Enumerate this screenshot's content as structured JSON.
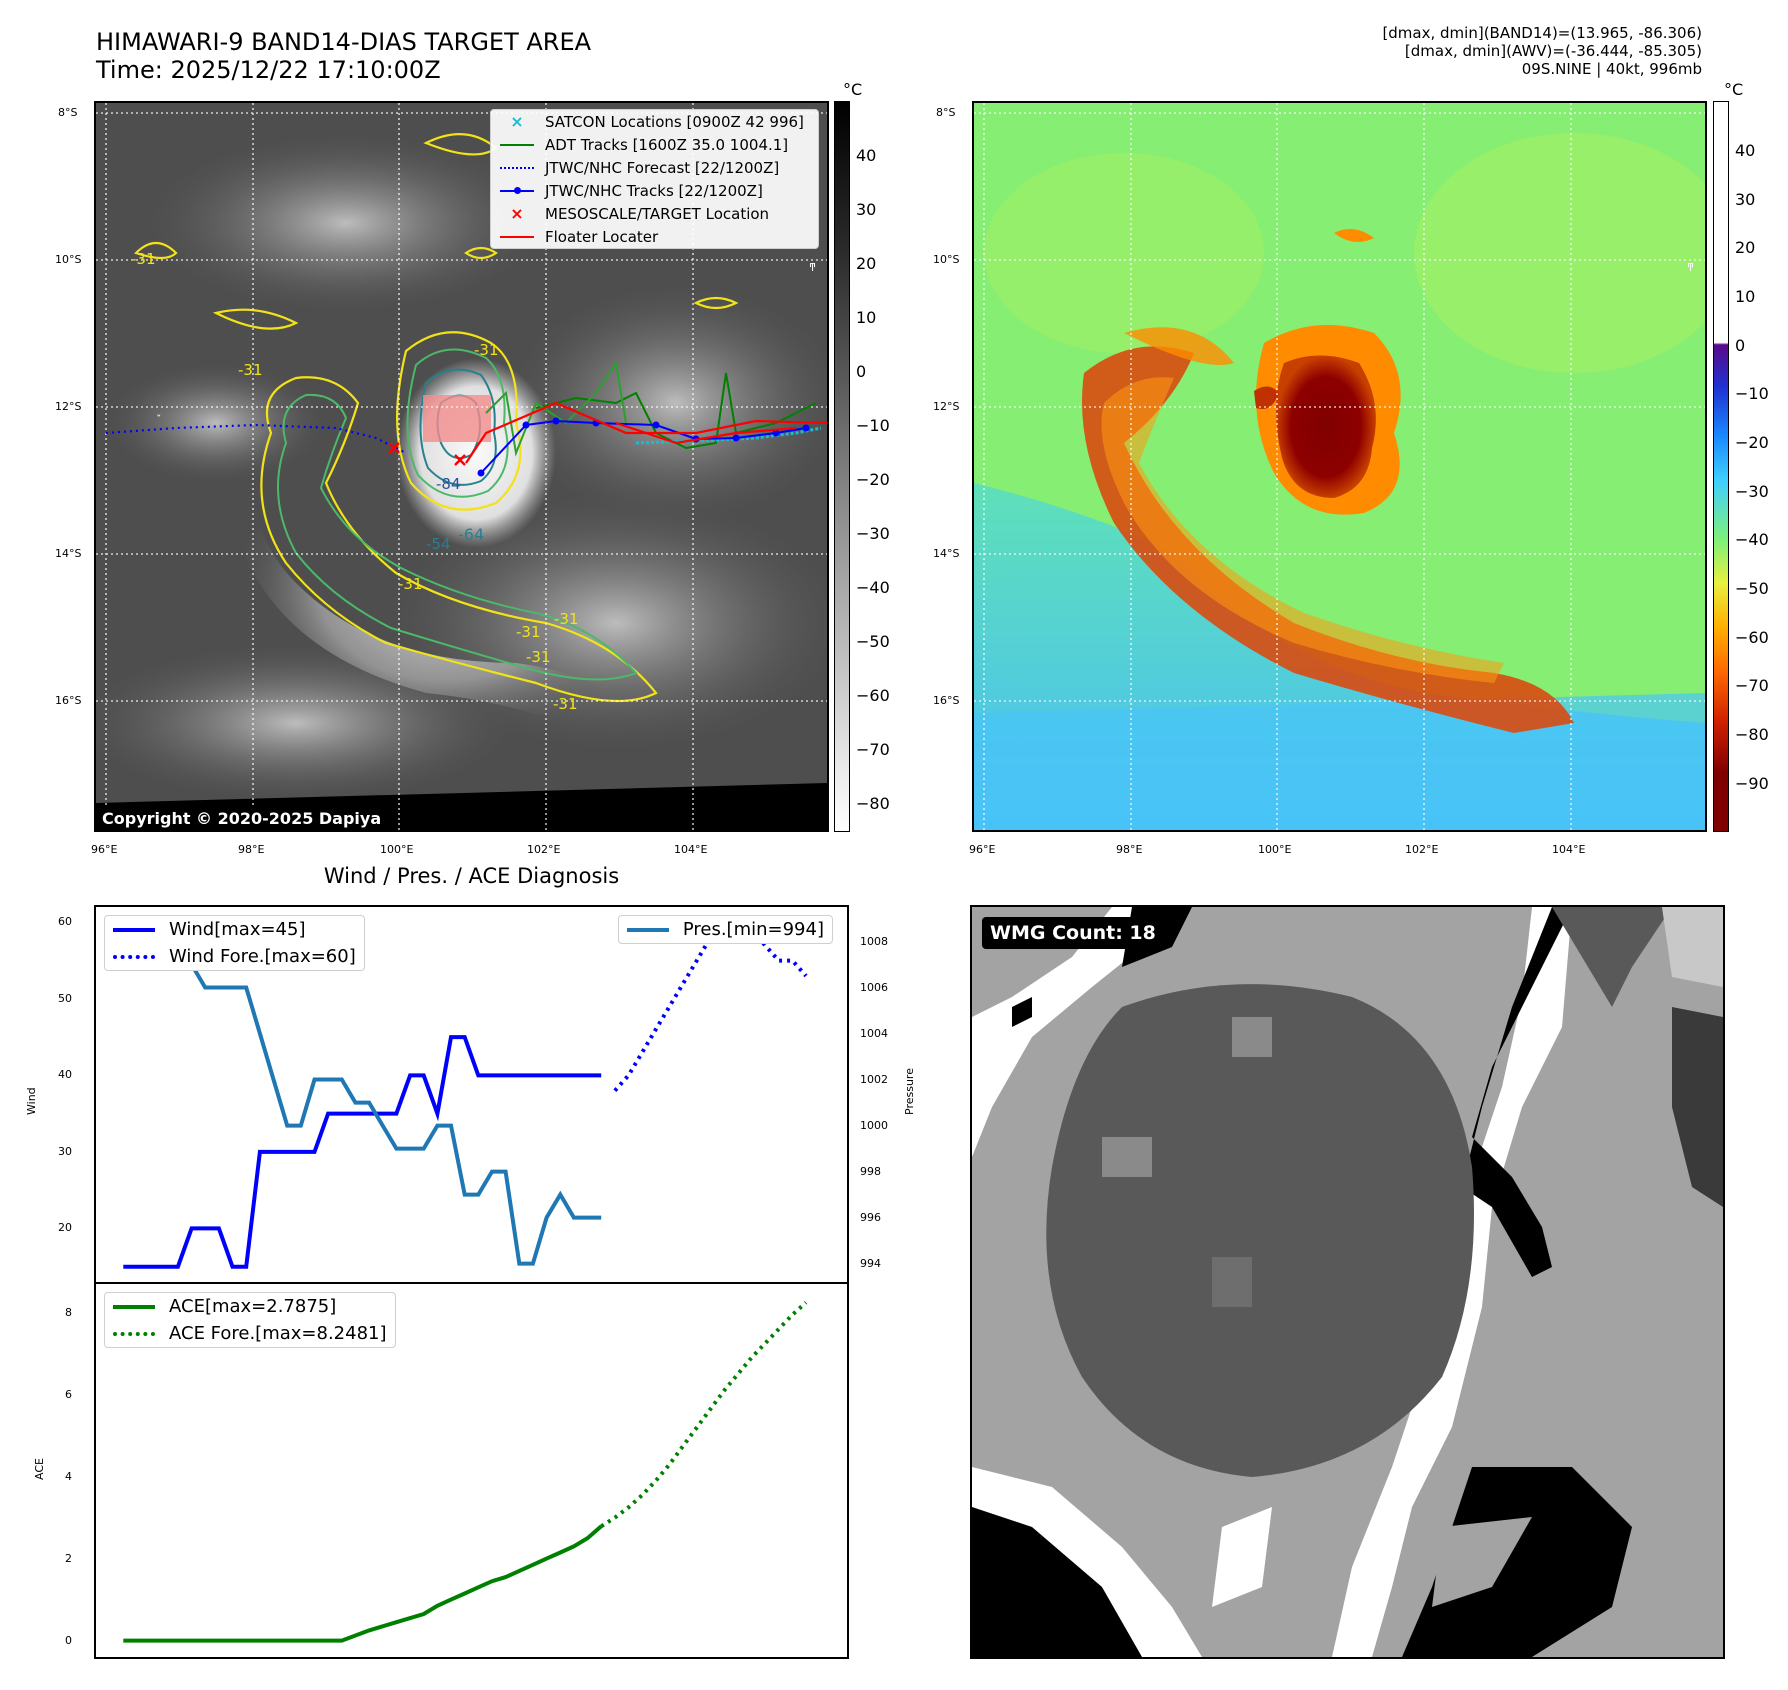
{
  "header": {
    "title_line1": "HIMAWARI-9 BAND14-DIAS TARGET AREA",
    "title_line2": "Time: 2025/12/22 17:10:00Z",
    "info_line1": "[dmax, dmin](BAND14)=(13.965, -86.306)",
    "info_line2": "[dmax, dmin](AWV)=(-36.444, -85.305)",
    "info_line3": "09S.NINE | 40kt, 996mb"
  },
  "map_axes": {
    "lat_labels": [
      "8°S",
      "10°S",
      "12°S",
      "14°S",
      "16°S"
    ],
    "lon_labels": [
      "96°E",
      "98°E",
      "100°E",
      "102°E",
      "104°E"
    ]
  },
  "left_map": {
    "copyright": "Copyright © 2020-2025 Dapiya",
    "contour_labels": [
      "-31",
      "-31",
      "-31",
      "-31",
      "-31",
      "-31",
      "-64",
      "-84",
      "-54",
      "-31",
      "-31"
    ],
    "legend": [
      {
        "label": "SATCON Locations [0900Z 42 996]",
        "symbol": "x-marker",
        "color": "#17becf"
      },
      {
        "label": "ADT Tracks [1600Z 35.0 1004.1]",
        "symbol": "solid-line",
        "color": "#008000"
      },
      {
        "label": "JTWC/NHC Forecast [22/1200Z]",
        "symbol": "dotted-line",
        "color": "#0000ff"
      },
      {
        "label": "JTWC/NHC Tracks [22/1200Z]",
        "symbol": "dot-line",
        "color": "#0000ff"
      },
      {
        "label": "MESOSCALE/TARGET Location",
        "symbol": "x-marker",
        "color": "#ff0000"
      },
      {
        "label": "Floater Locater",
        "symbol": "solid-line",
        "color": "#ff0000"
      }
    ]
  },
  "left_colorbar": {
    "unit": "°C",
    "ticks": [
      "40",
      "30",
      "20",
      "10",
      "0",
      "−10",
      "−20",
      "−30",
      "−40",
      "−50",
      "−60",
      "−70",
      "−80"
    ]
  },
  "right_colorbar": {
    "unit": "°C",
    "ticks": [
      "40",
      "30",
      "20",
      "10",
      "0",
      "−10",
      "−20",
      "−30",
      "−40",
      "−50",
      "−60",
      "−70",
      "−80",
      "−90"
    ]
  },
  "diag_title": "Wind / Pres. / ACE Diagnosis",
  "wmg": {
    "label": "WMG Count: 18"
  },
  "chart_data": [
    {
      "type": "line",
      "ylabel": "Wind",
      "ylim": [
        13,
        62
      ],
      "yticks": [
        20,
        30,
        40,
        50,
        60
      ],
      "legend_placement": "top-left",
      "series": [
        {
          "name": "Wind[max=45]",
          "style": "solid",
          "color": "#0000ff",
          "x": [
            0,
            1,
            2,
            3,
            4,
            5,
            6,
            7,
            8,
            9,
            10,
            11,
            12,
            13,
            14,
            15,
            16,
            17,
            18,
            19,
            20,
            21,
            22,
            23,
            24,
            25,
            26,
            27,
            28,
            29,
            30,
            31,
            32,
            33,
            34,
            35
          ],
          "values": [
            15,
            15,
            15,
            15,
            15,
            20,
            20,
            20,
            15,
            15,
            30,
            30,
            30,
            30,
            30,
            35,
            35,
            35,
            35,
            35,
            35,
            40,
            40,
            35,
            45,
            45,
            40,
            40,
            40,
            40,
            40,
            40,
            40,
            40,
            40,
            40
          ]
        },
        {
          "name": "Wind Fore.[max=60]",
          "style": "dotted",
          "color": "#0000ff",
          "x": [
            36,
            37,
            38,
            39,
            40,
            41,
            42,
            43,
            44,
            45,
            46,
            47,
            48,
            49,
            50
          ],
          "values": [
            38,
            40,
            43,
            46,
            49,
            52,
            55,
            58,
            60,
            60,
            59,
            57,
            55,
            55,
            53
          ]
        }
      ]
    },
    {
      "type": "line",
      "ylabel": "Pressure",
      "ylim": [
        993.2,
        1009.5
      ],
      "yticks": [
        994,
        996,
        998,
        1000,
        1002,
        1004,
        1006,
        1008
      ],
      "legend_placement": "top-right",
      "series": [
        {
          "name": "Pres.[min=994]",
          "style": "solid",
          "color": "#1f77b4",
          "x": [
            0,
            1,
            2,
            3,
            4,
            5,
            6,
            7,
            8,
            9,
            10,
            11,
            12,
            13,
            14,
            15,
            16,
            17,
            18,
            19,
            20,
            21,
            22,
            23,
            24,
            25,
            26,
            27,
            28,
            29,
            30,
            31,
            32,
            33,
            34,
            35
          ],
          "values": [
            1009,
            1009,
            1007,
            1007,
            1007,
            1007,
            1006,
            1006,
            1006,
            1006,
            1004,
            1002,
            1000,
            1000,
            1002,
            1002,
            1002,
            1001,
            1001,
            1000,
            999,
            999,
            999,
            1000,
            1000,
            997,
            997,
            998,
            998,
            994,
            994,
            996,
            997,
            996,
            996,
            996
          ]
        }
      ]
    },
    {
      "type": "line",
      "ylabel": "ACE",
      "ylim": [
        -0.4,
        8.7
      ],
      "yticks": [
        0,
        2,
        4,
        6,
        8
      ],
      "legend_placement": "top-left",
      "series": [
        {
          "name": "ACE[max=2.7875]",
          "style": "solid",
          "color": "#008000",
          "x": [
            0,
            5,
            10,
            15,
            16,
            18,
            20,
            22,
            23,
            24,
            25,
            26,
            27,
            28,
            29,
            30,
            31,
            32,
            33,
            34,
            35
          ],
          "values": [
            0,
            0,
            0,
            0,
            0,
            0.25,
            0.45,
            0.65,
            0.85,
            1.0,
            1.15,
            1.3,
            1.45,
            1.55,
            1.7,
            1.85,
            2.0,
            2.15,
            2.3,
            2.5,
            2.7875
          ]
        },
        {
          "name": "ACE Fore.[max=8.2481]",
          "style": "dotted",
          "color": "#008000",
          "x": [
            35,
            36,
            37,
            38,
            39,
            40,
            41,
            42,
            43,
            44,
            45,
            46,
            47,
            48,
            49,
            50
          ],
          "values": [
            2.7875,
            3.0,
            3.25,
            3.55,
            3.9,
            4.3,
            4.75,
            5.2,
            5.65,
            6.1,
            6.5,
            6.9,
            7.25,
            7.6,
            7.95,
            8.2481
          ]
        }
      ]
    }
  ]
}
